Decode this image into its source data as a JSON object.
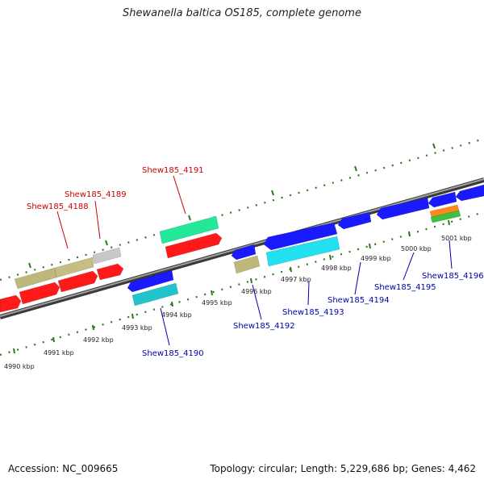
{
  "title": "Shewanella baltica OS185, complete genome",
  "footer": {
    "accession": "Accession: NC_009665",
    "summary": "Topology: circular; Length: 5,229,686 bp; Genes: 4,462"
  },
  "ruler_labels": [
    "4990 kbp",
    "4991 kbp",
    "4992 kbp",
    "4993 kbp",
    "4994 kbp",
    "4995 kbp",
    "4996 kbp",
    "4997 kbp",
    "4998 kbp",
    "4999 kbp",
    "5000 kbp",
    "5001 kbp"
  ],
  "gene_labels": {
    "forward": [
      "Shew185_4188",
      "Shew185_4189",
      "Shew185_4191"
    ],
    "reverse": [
      "Shew185_4190",
      "Shew185_4192",
      "Shew185_4193",
      "Shew185_4194",
      "Shew185_4195",
      "Shew185_4196"
    ]
  },
  "colors": {
    "forward_label": "#cc0000",
    "reverse_label": "#0000aa",
    "ruler": "#2a7a1a",
    "red": "#ff1a1a",
    "khaki": "#bdb77a",
    "grey": "#c8c8c8",
    "blue": "#1a1aff",
    "green": "#22e898",
    "cyan": "#22e0f0",
    "teal": "#22c4cc",
    "orange": "#ff8a1a",
    "lime": "#3ec13e"
  }
}
